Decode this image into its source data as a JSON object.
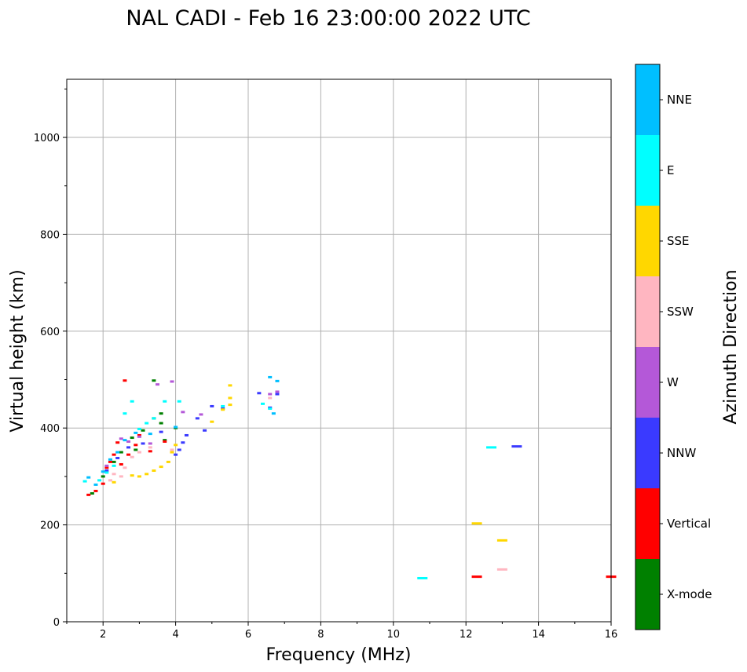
{
  "chart_data": {
    "type": "scatter",
    "title": "NAL CADI - Feb 16 23:00:00 2022 UTC",
    "xlabel": "Frequency (MHz)",
    "ylabel": "Virtual height (km)",
    "xlim": [
      1,
      16
    ],
    "ylim": [
      0,
      1120
    ],
    "xticks": [
      2,
      4,
      6,
      8,
      10,
      12,
      14,
      16
    ],
    "yticks": [
      0,
      200,
      400,
      600,
      800,
      1000
    ],
    "grid": true,
    "colorbar": {
      "title": "Azimuth Direction",
      "categories": [
        {
          "label": "X-mode",
          "color": "#008000"
        },
        {
          "label": "Vertical",
          "color": "#ff0000"
        },
        {
          "label": "NNW",
          "color": "#3a3aff"
        },
        {
          "label": "W",
          "color": "#b458d8"
        },
        {
          "label": "SSW",
          "color": "#ffb6c1"
        },
        {
          "label": "SSE",
          "color": "#ffd700"
        },
        {
          "label": "E",
          "color": "#00ffff"
        },
        {
          "label": "NNE",
          "color": "#00bfff"
        }
      ]
    },
    "series": [
      {
        "name": "X-mode",
        "color": "#008000",
        "points": [
          [
            1.7,
            265
          ],
          [
            2.0,
            300
          ],
          [
            2.3,
            330
          ],
          [
            2.5,
            350
          ],
          [
            2.8,
            380
          ],
          [
            2.9,
            355
          ],
          [
            3.1,
            395
          ],
          [
            3.4,
            420
          ],
          [
            3.4,
            498
          ],
          [
            3.6,
            410
          ],
          [
            3.6,
            430
          ],
          [
            3.7,
            375
          ],
          [
            4.0,
            400
          ]
        ]
      },
      {
        "name": "Vertical",
        "color": "#ff0000",
        "points": [
          [
            1.6,
            262
          ],
          [
            1.8,
            270
          ],
          [
            2.0,
            285
          ],
          [
            2.1,
            318
          ],
          [
            2.2,
            330
          ],
          [
            2.3,
            345
          ],
          [
            2.5,
            325
          ],
          [
            2.6,
            498
          ],
          [
            2.7,
            345
          ],
          [
            2.9,
            365
          ],
          [
            3.0,
            385
          ],
          [
            3.3,
            352
          ],
          [
            3.7,
            372
          ],
          [
            2.4,
            370
          ],
          [
            12.3,
            93
          ],
          [
            16.0,
            93
          ]
        ]
      },
      {
        "name": "NNW",
        "color": "#3a3aff",
        "points": [
          [
            2.1,
            312
          ],
          [
            2.4,
            338
          ],
          [
            2.7,
            360
          ],
          [
            3.1,
            368
          ],
          [
            3.6,
            392
          ],
          [
            4.0,
            345
          ],
          [
            4.1,
            355
          ],
          [
            4.2,
            370
          ],
          [
            4.3,
            385
          ],
          [
            4.6,
            420
          ],
          [
            4.8,
            395
          ],
          [
            5.0,
            445
          ],
          [
            5.3,
            440
          ],
          [
            6.3,
            472
          ],
          [
            6.6,
            442
          ],
          [
            6.8,
            470
          ],
          [
            13.4,
            362
          ]
        ]
      },
      {
        "name": "W",
        "color": "#b458d8",
        "points": [
          [
            2.1,
            322
          ],
          [
            2.5,
            378
          ],
          [
            2.7,
            372
          ],
          [
            3.0,
            382
          ],
          [
            3.3,
            368
          ],
          [
            3.5,
            490
          ],
          [
            3.9,
            496
          ],
          [
            4.2,
            433
          ],
          [
            4.7,
            428
          ],
          [
            6.6,
            470
          ],
          [
            6.8,
            475
          ]
        ]
      },
      {
        "name": "SSW",
        "color": "#ffb6c1",
        "points": [
          [
            2.2,
            292
          ],
          [
            2.3,
            305
          ],
          [
            2.5,
            300
          ],
          [
            2.6,
            318
          ],
          [
            2.8,
            340
          ],
          [
            3.0,
            350
          ],
          [
            3.3,
            360
          ],
          [
            3.9,
            355
          ],
          [
            6.6,
            462
          ],
          [
            13.0,
            108
          ]
        ]
      },
      {
        "name": "SSE",
        "color": "#ffd700",
        "points": [
          [
            2.3,
            288
          ],
          [
            2.8,
            302
          ],
          [
            3.0,
            300
          ],
          [
            3.2,
            305
          ],
          [
            3.4,
            312
          ],
          [
            3.6,
            320
          ],
          [
            3.8,
            330
          ],
          [
            3.9,
            350
          ],
          [
            4.0,
            365
          ],
          [
            5.0,
            413
          ],
          [
            5.3,
            438
          ],
          [
            5.5,
            448
          ],
          [
            5.5,
            462
          ],
          [
            5.5,
            488
          ],
          [
            12.3,
            203
          ],
          [
            13.0,
            168
          ]
        ]
      },
      {
        "name": "E",
        "color": "#00ffff",
        "points": [
          [
            1.5,
            290
          ],
          [
            1.9,
            292
          ],
          [
            2.1,
            308
          ],
          [
            2.3,
            322
          ],
          [
            2.6,
            430
          ],
          [
            2.8,
            455
          ],
          [
            3.0,
            398
          ],
          [
            3.2,
            410
          ],
          [
            3.4,
            420
          ],
          [
            3.7,
            455
          ],
          [
            4.1,
            455
          ],
          [
            5.3,
            445
          ],
          [
            6.4,
            450
          ],
          [
            6.6,
            440
          ],
          [
            10.8,
            90
          ],
          [
            12.7,
            360
          ]
        ]
      },
      {
        "name": "NNE",
        "color": "#00bfff",
        "points": [
          [
            1.6,
            298
          ],
          [
            1.8,
            283
          ],
          [
            2.0,
            310
          ],
          [
            2.2,
            335
          ],
          [
            2.4,
            350
          ],
          [
            2.6,
            375
          ],
          [
            2.9,
            390
          ],
          [
            3.3,
            388
          ],
          [
            4.0,
            402
          ],
          [
            6.6,
            505
          ],
          [
            6.8,
            497
          ],
          [
            6.7,
            430
          ]
        ]
      }
    ]
  }
}
